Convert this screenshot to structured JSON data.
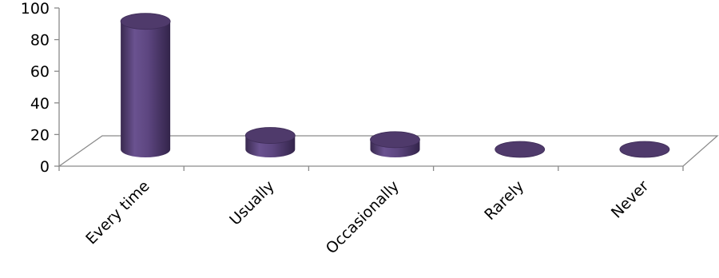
{
  "chart_data": {
    "type": "bar",
    "style": "3d-cylinder",
    "title": "",
    "xlabel": "",
    "ylabel": "",
    "categories": [
      "Every time",
      "Usually",
      "Occasionally",
      "Rarely",
      "Never"
    ],
    "values": [
      92,
      10,
      7,
      0,
      0
    ],
    "ylim": [
      0,
      100
    ],
    "yticks": [
      0,
      20,
      40,
      60,
      80,
      100
    ],
    "grid": false,
    "legend": "none",
    "colors": {
      "body": "#5b4477",
      "top": "#4f3a6b",
      "axis": "#8a8a8a"
    }
  }
}
